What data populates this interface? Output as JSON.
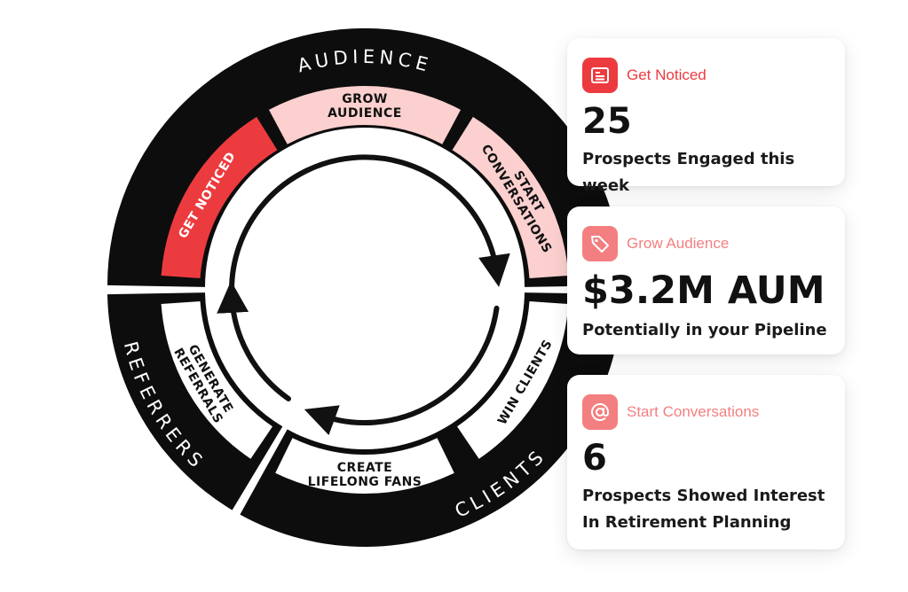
{
  "diagram": {
    "outer_labels": {
      "audience": "AUDIENCE",
      "clients": "CLIENTS",
      "referrers": "REFERRERS"
    },
    "segments": {
      "grow_audience": [
        "GROW",
        "AUDIENCE"
      ],
      "start_conversations": [
        "START",
        "CONVERSATIONS"
      ],
      "get_noticed": [
        "GET NOTICED"
      ],
      "win_clients": [
        "WIN CLIENTS"
      ],
      "create_fans": [
        "CREATE",
        "LIFELONG FANS"
      ],
      "generate_referrals": [
        "GENERATE",
        "REFERRALS"
      ]
    },
    "colors": {
      "ring": "#0d0d0d",
      "red": "#ec3b3f",
      "pink": "#fbd0cf",
      "white": "#ffffff"
    }
  },
  "cards": [
    {
      "icon": "newspaper-icon",
      "icon_color": "#ec3b3f",
      "label": "Get Noticed",
      "label_color": "#ec3b3f",
      "value": "25",
      "desc_lines": [
        "Prospects Engaged this week"
      ]
    },
    {
      "icon": "tag-icon",
      "icon_color": "#f37f80",
      "label": "Grow Audience",
      "label_color": "#f37f80",
      "value": "$3.2M AUM",
      "desc_lines": [
        "Potentially in your Pipeline"
      ]
    },
    {
      "icon": "at-sign-icon",
      "icon_color": "#f37f80",
      "label": "Start Conversations",
      "label_color": "#f37f80",
      "value": "6",
      "desc_lines": [
        "Prospects Showed Interest",
        "In Retirement Planning"
      ]
    }
  ]
}
